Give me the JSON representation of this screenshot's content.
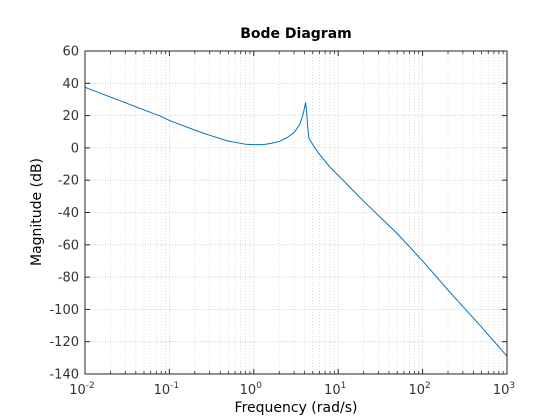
{
  "chart_data": {
    "type": "line",
    "title": "Bode Diagram",
    "xlabel": "Frequency  (rad/s)",
    "ylabel": "Magnitude (dB)",
    "xscale": "log",
    "xlim": [
      0.01,
      1000
    ],
    "ylim": [
      -140,
      60
    ],
    "grid": true,
    "minor_grid": true,
    "x_ticks": [
      {
        "base": "10",
        "exp": "-2",
        "value": 0.01
      },
      {
        "base": "10",
        "exp": "-1",
        "value": 0.1
      },
      {
        "base": "10",
        "exp": "0",
        "value": 1
      },
      {
        "base": "10",
        "exp": "1",
        "value": 10
      },
      {
        "base": "10",
        "exp": "2",
        "value": 100
      },
      {
        "base": "10",
        "exp": "3",
        "value": 1000
      }
    ],
    "y_ticks": [
      "60",
      "40",
      "20",
      "0",
      "-20",
      "-40",
      "-60",
      "-80",
      "-100",
      "-120",
      "-140"
    ],
    "series": [
      {
        "color": "#0072bd",
        "x": [
          0.01,
          0.02,
          0.03,
          0.05,
          0.08,
          0.1,
          0.2,
          0.3,
          0.5,
          0.8,
          1.0,
          1.3,
          1.6,
          2.0,
          2.5,
          3.0,
          3.5,
          3.8,
          4.0,
          4.1,
          4.2,
          4.35,
          4.5,
          5.0,
          6.0,
          8.0,
          10,
          20,
          50,
          100,
          200,
          500,
          1000
        ],
        "y": [
          37.5,
          31.5,
          28,
          23.5,
          19.5,
          17,
          11,
          7.8,
          4.2,
          2.3,
          2.0,
          2.0,
          2.8,
          4.0,
          6.5,
          9.5,
          14.5,
          20,
          25,
          28,
          24,
          13,
          6,
          2,
          -4,
          -12,
          -17,
          -33,
          -53,
          -70,
          -88,
          -111,
          -129
        ]
      }
    ]
  }
}
